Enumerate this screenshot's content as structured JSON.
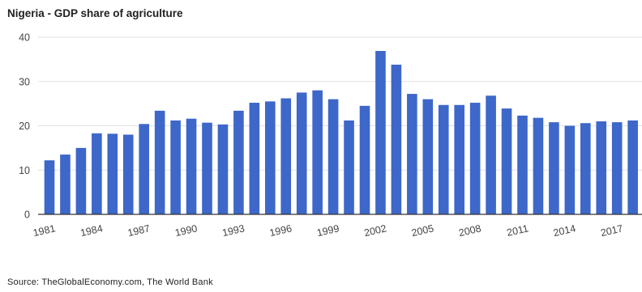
{
  "title": "Nigeria - GDP share of agriculture",
  "source": "Source: TheGlobalEconomy.com, The World Bank",
  "colors": {
    "bar": "#3d67c9",
    "grid": "#e2e2e2",
    "axis": "#333333"
  },
  "chart_data": {
    "type": "bar",
    "title": "Nigeria - GDP share of agriculture",
    "xlabel": "",
    "ylabel": "",
    "ylim": [
      0,
      40
    ],
    "yticks": [
      0,
      10,
      20,
      30,
      40
    ],
    "grid": true,
    "legend": "none",
    "categories": [
      "1981",
      "1982",
      "1983",
      "1984",
      "1985",
      "1986",
      "1987",
      "1988",
      "1989",
      "1990",
      "1991",
      "1992",
      "1993",
      "1994",
      "1995",
      "1996",
      "1997",
      "1998",
      "1999",
      "2000",
      "2001",
      "2002",
      "2003",
      "2004",
      "2005",
      "2006",
      "2007",
      "2008",
      "2009",
      "2010",
      "2011",
      "2012",
      "2013",
      "2014",
      "2015",
      "2016",
      "2017",
      "2018",
      "2019"
    ],
    "xtick_labels": [
      "1981",
      "1984",
      "1987",
      "1990",
      "1993",
      "1996",
      "1999",
      "2002",
      "2005",
      "2008",
      "2011",
      "2014",
      "2017"
    ],
    "series": [
      {
        "values": [
          12.2,
          13.5,
          15.0,
          18.3,
          18.2,
          18.0,
          20.4,
          23.4,
          21.2,
          21.6,
          20.7,
          20.3,
          23.4,
          25.2,
          25.5,
          26.2,
          27.5,
          28.0,
          26.0,
          21.2,
          24.5,
          36.9,
          33.8,
          27.2,
          26.0,
          24.7,
          24.7,
          25.2,
          26.8,
          23.9,
          22.3,
          21.8,
          20.8,
          20.0,
          20.6,
          21.0,
          20.8,
          21.2,
          21.9
        ]
      }
    ]
  }
}
